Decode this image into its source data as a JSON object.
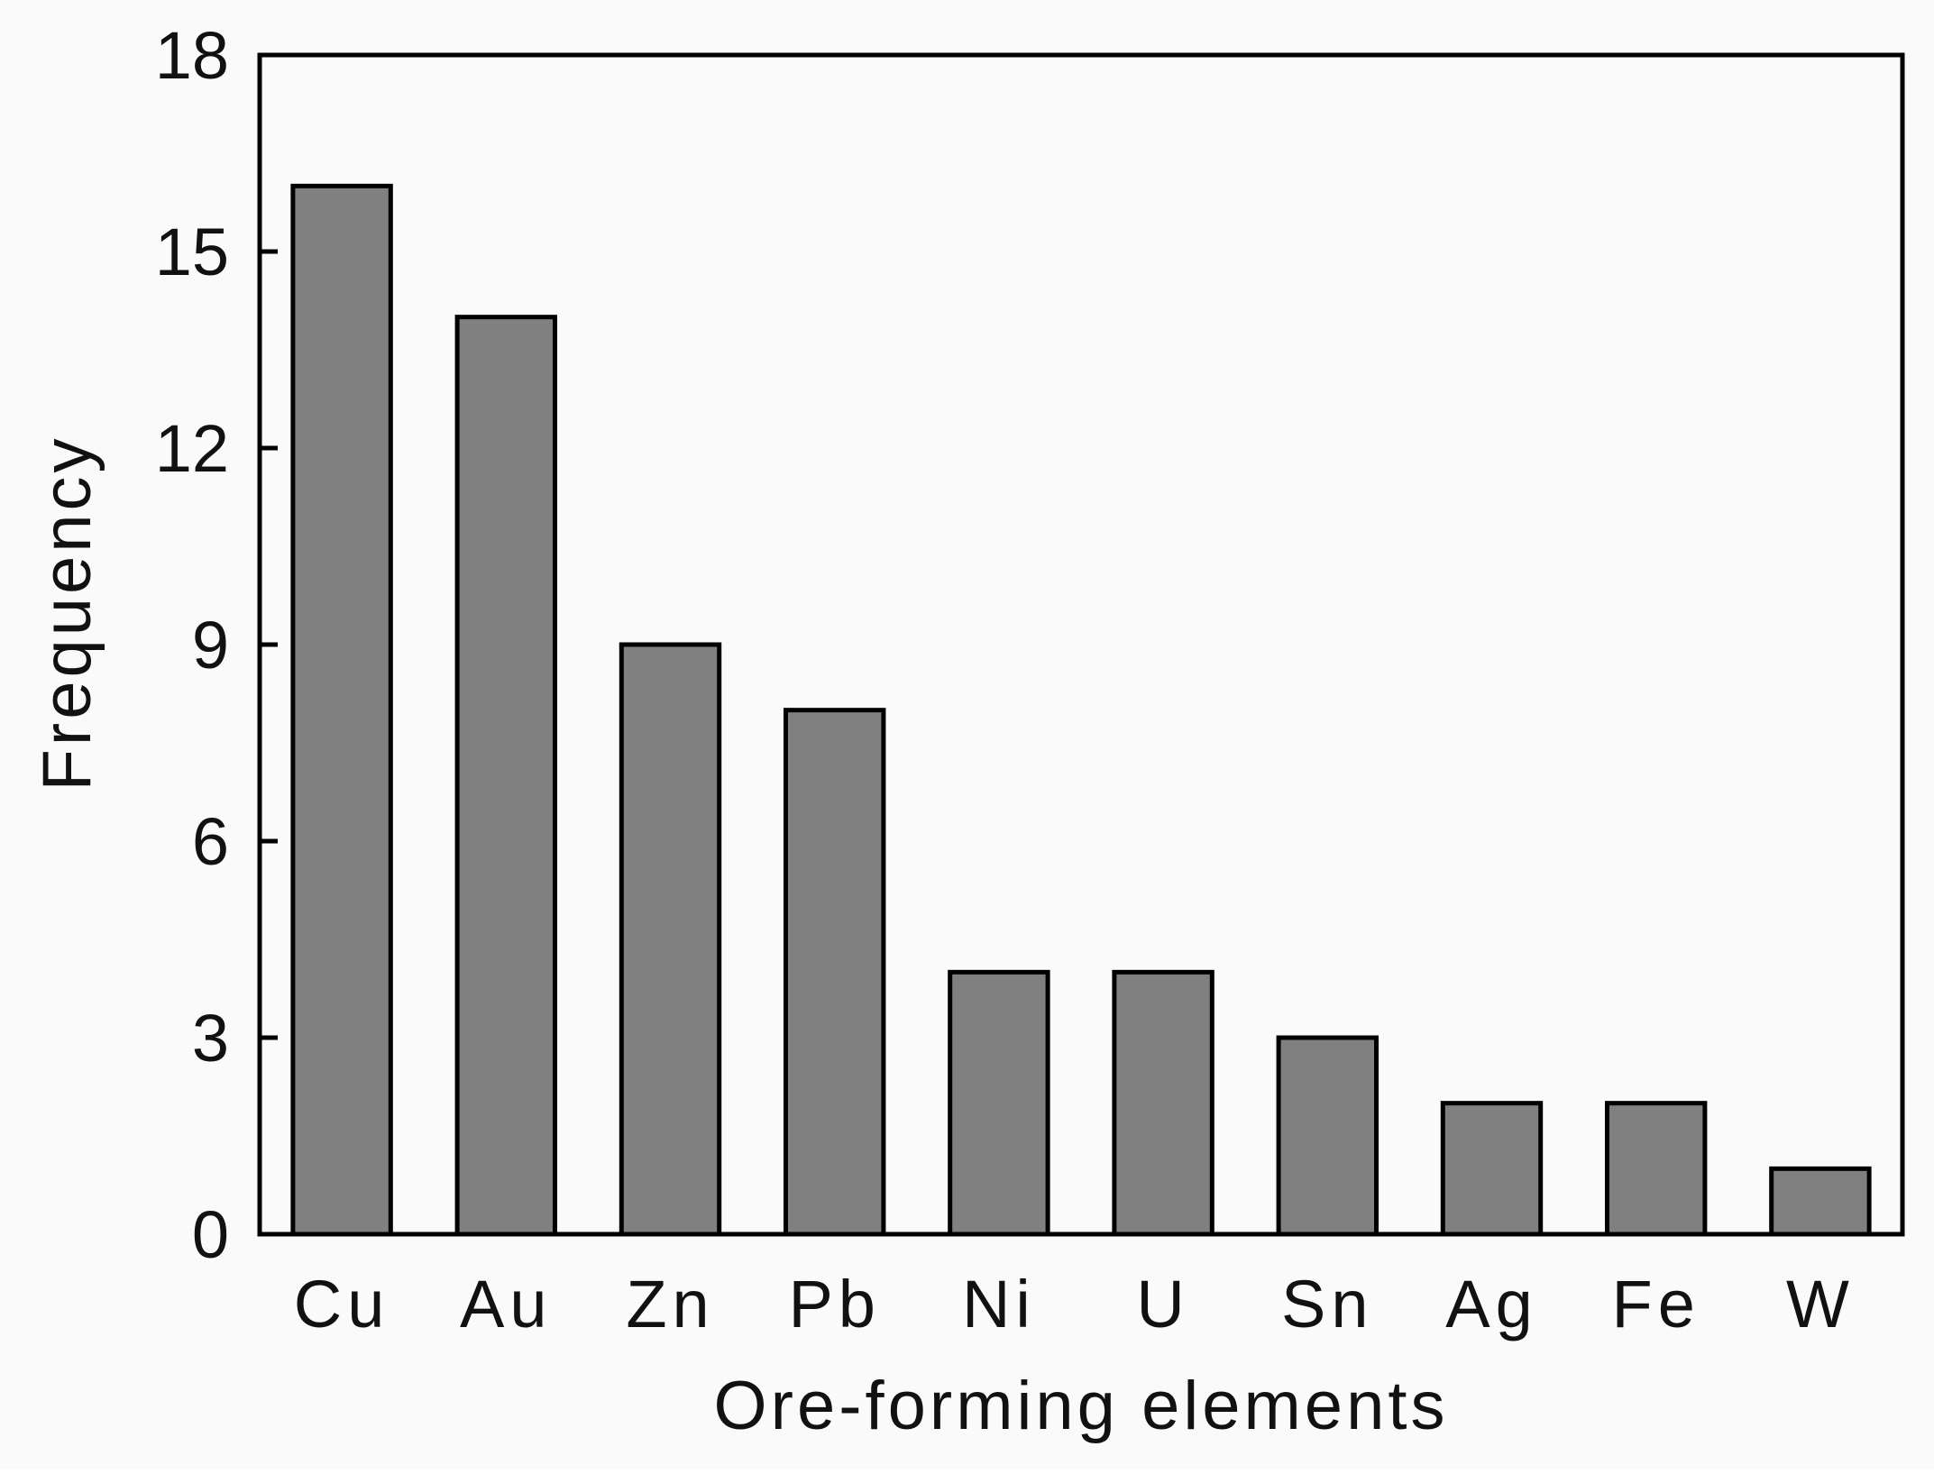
{
  "chart_data": {
    "type": "bar",
    "title": "",
    "xlabel": "Ore-forming elements",
    "ylabel": "Frequency",
    "categories": [
      "Cu",
      "Au",
      "Zn",
      "Pb",
      "Ni",
      "U",
      "Sn",
      "Ag",
      "Fe",
      "W"
    ],
    "values": [
      16,
      14,
      9,
      8,
      4,
      4,
      3,
      2,
      2,
      1
    ],
    "ylim": [
      0,
      18
    ],
    "yticks": [
      "0",
      "3",
      "6",
      "9",
      "12",
      "15",
      "18"
    ],
    "grid": false,
    "legend": "none",
    "colors": {
      "bar_fill": "#808080",
      "bar_stroke": "#000000",
      "axis": "#000000",
      "text": "#111111",
      "background": "#fafafa"
    }
  }
}
